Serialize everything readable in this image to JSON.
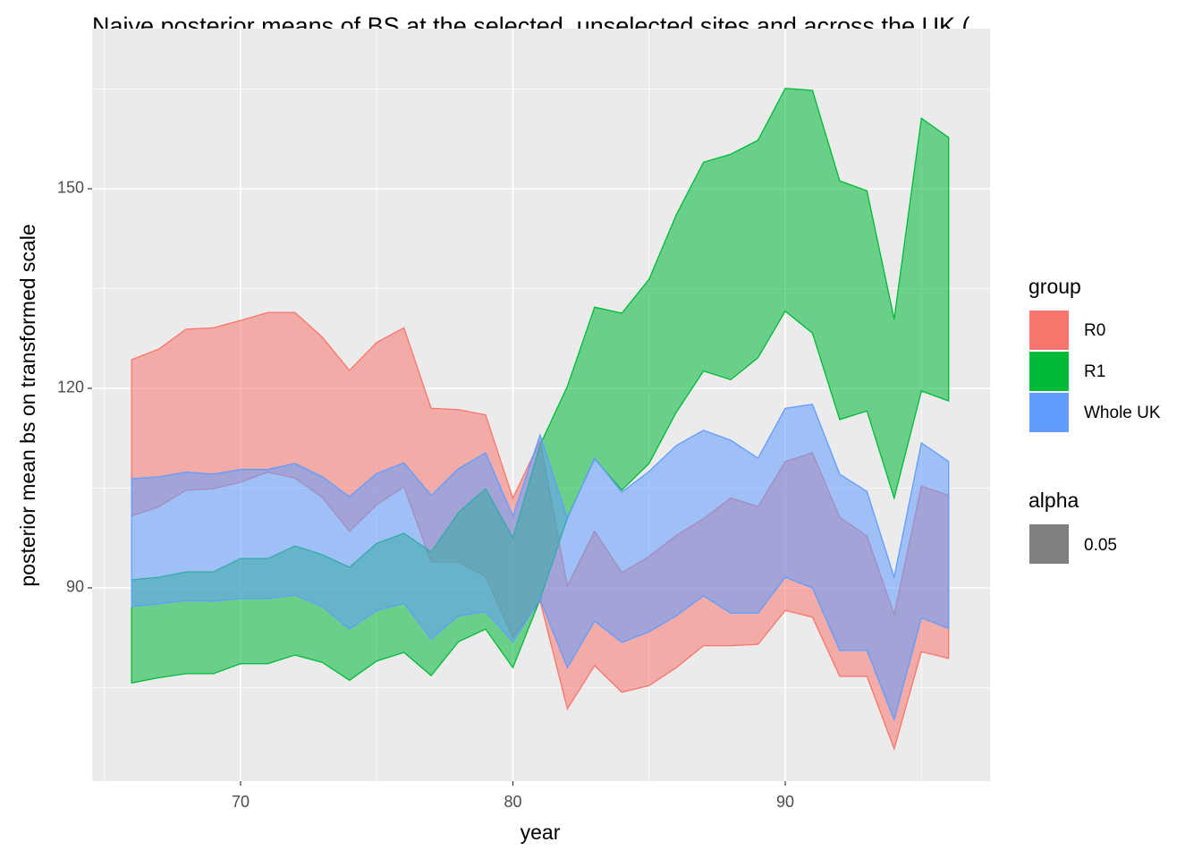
{
  "chart_data": {
    "type": "ribbon",
    "title": "Naive posterior means of BS at the selected, unselected sites and across the UK (",
    "x_label": "year",
    "y_label": "posterior mean bs on transformed scale",
    "x": [
      66,
      67,
      68,
      69,
      70,
      71,
      72,
      73,
      74,
      75,
      76,
      77,
      78,
      79,
      80,
      81,
      82,
      83,
      84,
      85,
      86,
      87,
      88,
      89,
      90,
      91,
      92,
      93,
      94,
      95,
      96
    ],
    "series": [
      {
        "name": "R0",
        "color": "#F8766D",
        "upper": [
          124.3,
          125.9,
          128.9,
          129.1,
          130.2,
          131.4,
          131.4,
          127.7,
          122.7,
          126.9,
          129.1,
          117.0,
          116.8,
          116.0,
          103.5,
          112.1,
          90.3,
          98.5,
          92.3,
          94.7,
          97.9,
          100.4,
          103.5,
          102.2,
          109.0,
          110.3,
          100.6,
          97.8,
          86.0,
          105.3,
          103.9
        ],
        "lower": [
          100.8,
          102.2,
          104.7,
          104.9,
          105.9,
          107.4,
          106.5,
          103.6,
          98.5,
          102.5,
          105.2,
          93.9,
          93.9,
          91.7,
          82.6,
          88.0,
          71.8,
          78.3,
          74.3,
          75.3,
          78.0,
          81.3,
          81.3,
          81.5,
          86.6,
          85.6,
          76.7,
          76.7,
          65.8,
          80.4,
          79.4
        ]
      },
      {
        "name": "R1",
        "color": "#00BA38",
        "upper": [
          91.2,
          91.6,
          92.4,
          92.4,
          94.4,
          94.4,
          96.3,
          95.0,
          93.1,
          96.7,
          98.2,
          95.4,
          101.3,
          104.9,
          97.5,
          111.5,
          120.3,
          132.2,
          131.3,
          136.4,
          146.1,
          154.0,
          155.2,
          157.3,
          165.1,
          164.8,
          151.2,
          149.7,
          130.4,
          160.6,
          157.7
        ],
        "lower": [
          75.7,
          76.5,
          77.1,
          77.1,
          78.6,
          78.6,
          79.9,
          78.8,
          76.1,
          79.0,
          80.3,
          76.8,
          81.9,
          83.8,
          78.0,
          88.3,
          100.5,
          109.4,
          104.7,
          108.7,
          116.4,
          122.6,
          121.3,
          124.6,
          131.6,
          128.3,
          115.3,
          116.6,
          103.5,
          119.6,
          118.1
        ]
      },
      {
        "name": "Whole UK",
        "color": "#619CFF",
        "upper": [
          106.4,
          106.7,
          107.4,
          107.1,
          107.8,
          107.8,
          108.7,
          106.7,
          103.7,
          107.2,
          108.8,
          103.9,
          107.9,
          110.3,
          100.8,
          113.0,
          100.4,
          109.5,
          104.4,
          107.5,
          111.4,
          113.7,
          112.2,
          109.5,
          117.0,
          117.6,
          107.1,
          104.5,
          91.6,
          111.8,
          109.0
        ],
        "lower": [
          87.2,
          87.6,
          88.1,
          88.0,
          88.4,
          88.4,
          88.9,
          87.2,
          83.8,
          86.6,
          87.7,
          82.3,
          85.8,
          86.4,
          81.9,
          88.3,
          78.0,
          85.0,
          81.8,
          83.4,
          85.8,
          88.8,
          86.2,
          86.2,
          91.6,
          90.0,
          80.6,
          80.6,
          70.2,
          85.5,
          83.9
        ]
      }
    ],
    "legend_title": "group",
    "alpha_legend": {
      "title": "alpha",
      "label": "0.05",
      "color": "#7F7F7F"
    },
    "xlim": [
      64.55,
      97.52
    ],
    "xticks": [
      70,
      80,
      90
    ],
    "ylim": [
      60.94,
      174.08
    ],
    "yticks": [
      90,
      120,
      150
    ],
    "grid": true,
    "legend_position": "right"
  }
}
